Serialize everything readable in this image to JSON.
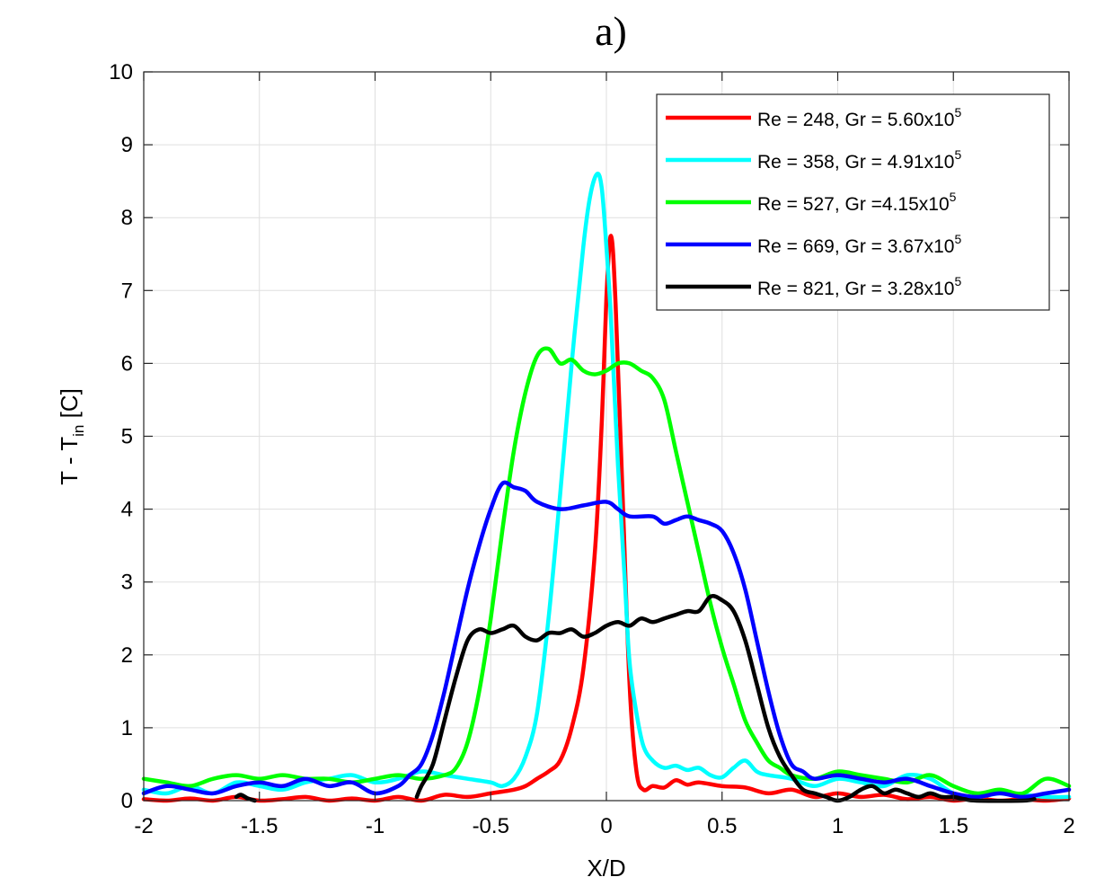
{
  "chart_data": {
    "type": "line",
    "title": "a)",
    "xlabel": "X/D",
    "ylabel": {
      "main": "T - T",
      "sub": "in",
      "unit": " [C]"
    },
    "xlim": [
      -2,
      2
    ],
    "ylim": [
      0,
      10
    ],
    "xticks": [
      "-2",
      "-1.5",
      "-1",
      "-0.5",
      "0",
      "0.5",
      "1",
      "1.5",
      "2"
    ],
    "yticks": [
      "0",
      "1",
      "2",
      "3",
      "4",
      "5",
      "6",
      "7",
      "8",
      "9",
      "10"
    ],
    "grid": true,
    "legend_position": "top-right",
    "series": [
      {
        "name": "Re = 248, Gr = 5.60x10",
        "exp": "5",
        "color": "#ff0000",
        "x": [
          -2,
          -1.9,
          -1.8,
          -1.7,
          -1.6,
          -1.5,
          -1.4,
          -1.3,
          -1.2,
          -1.1,
          -1,
          -0.9,
          -0.8,
          -0.7,
          -0.6,
          -0.5,
          -0.4,
          -0.35,
          -0.3,
          -0.25,
          -0.2,
          -0.15,
          -0.1,
          -0.05,
          -0.02,
          0,
          0.02,
          0.04,
          0.07,
          0.1,
          0.13,
          0.16,
          0.2,
          0.25,
          0.3,
          0.35,
          0.4,
          0.5,
          0.6,
          0.7,
          0.8,
          0.9,
          1.0,
          1.1,
          1.2,
          1.3,
          1.4,
          1.5,
          1.6,
          1.7,
          1.8,
          1.9,
          2
        ],
        "y": [
          0.02,
          0,
          0.03,
          0,
          0.05,
          0,
          0.02,
          0.05,
          0,
          0.03,
          0,
          0.05,
          0,
          0.08,
          0.05,
          0.1,
          0.15,
          0.2,
          0.3,
          0.4,
          0.55,
          1.0,
          1.8,
          3.4,
          5.2,
          6.9,
          7.75,
          6.8,
          4.2,
          1.6,
          0.4,
          0.15,
          0.2,
          0.18,
          0.28,
          0.22,
          0.25,
          0.2,
          0.18,
          0.1,
          0.15,
          0.05,
          0.1,
          0.05,
          0.08,
          0.02,
          0.05,
          0,
          0.03,
          0,
          0.02,
          0,
          0.03
        ]
      },
      {
        "name": "Re = 358, Gr = 4.91x10",
        "exp": "5",
        "color": "#00ffff",
        "x": [
          -2,
          -1.9,
          -1.8,
          -1.7,
          -1.6,
          -1.5,
          -1.4,
          -1.3,
          -1.2,
          -1.1,
          -1,
          -0.9,
          -0.8,
          -0.7,
          -0.6,
          -0.5,
          -0.45,
          -0.4,
          -0.35,
          -0.3,
          -0.25,
          -0.2,
          -0.15,
          -0.1,
          -0.07,
          -0.04,
          -0.02,
          0,
          0.02,
          0.05,
          0.08,
          0.1,
          0.13,
          0.16,
          0.2,
          0.25,
          0.3,
          0.35,
          0.4,
          0.45,
          0.5,
          0.55,
          0.6,
          0.65,
          0.7,
          0.8,
          0.9,
          1.0,
          1.1,
          1.2,
          1.3,
          1.4,
          1.5,
          1.6,
          1.7,
          1.8,
          1.9,
          2
        ],
        "y": [
          0.15,
          0.1,
          0.2,
          0.1,
          0.25,
          0.2,
          0.15,
          0.25,
          0.3,
          0.35,
          0.25,
          0.3,
          0.4,
          0.35,
          0.3,
          0.25,
          0.2,
          0.3,
          0.6,
          1.2,
          2.5,
          4.2,
          6.0,
          7.6,
          8.3,
          8.6,
          8.4,
          7.6,
          6.6,
          4.6,
          3.0,
          1.9,
          1.2,
          0.75,
          0.55,
          0.45,
          0.48,
          0.42,
          0.45,
          0.35,
          0.32,
          0.45,
          0.55,
          0.4,
          0.35,
          0.3,
          0.2,
          0.3,
          0.25,
          0.2,
          0.35,
          0.3,
          0.1,
          0.05,
          0.1,
          0.08,
          0.05,
          0.05
        ]
      },
      {
        "name": "Re = 527, Gr =4.15x10",
        "exp": "5",
        "color": "#00ff00",
        "x": [
          -2,
          -1.9,
          -1.8,
          -1.7,
          -1.6,
          -1.5,
          -1.4,
          -1.3,
          -1.2,
          -1.1,
          -1,
          -0.9,
          -0.8,
          -0.7,
          -0.65,
          -0.6,
          -0.55,
          -0.5,
          -0.45,
          -0.4,
          -0.35,
          -0.3,
          -0.25,
          -0.2,
          -0.15,
          -0.1,
          -0.05,
          0,
          0.05,
          0.1,
          0.15,
          0.2,
          0.25,
          0.3,
          0.35,
          0.4,
          0.45,
          0.5,
          0.55,
          0.6,
          0.65,
          0.7,
          0.75,
          0.8,
          0.9,
          1.0,
          1.1,
          1.2,
          1.3,
          1.4,
          1.5,
          1.6,
          1.7,
          1.8,
          1.9,
          2
        ],
        "y": [
          0.3,
          0.25,
          0.2,
          0.3,
          0.35,
          0.3,
          0.35,
          0.3,
          0.3,
          0.25,
          0.3,
          0.35,
          0.3,
          0.35,
          0.45,
          0.8,
          1.5,
          2.5,
          3.7,
          4.8,
          5.6,
          6.1,
          6.2,
          6.0,
          6.05,
          5.9,
          5.85,
          5.9,
          6.0,
          6.0,
          5.9,
          5.8,
          5.5,
          4.8,
          4.1,
          3.4,
          2.7,
          2.1,
          1.6,
          1.1,
          0.8,
          0.55,
          0.45,
          0.35,
          0.3,
          0.4,
          0.35,
          0.3,
          0.25,
          0.35,
          0.2,
          0.1,
          0.15,
          0.1,
          0.3,
          0.2
        ]
      },
      {
        "name": "Re = 669, Gr = 3.67x10",
        "exp": "5",
        "color": "#0000ff",
        "x": [
          -2,
          -1.9,
          -1.8,
          -1.7,
          -1.6,
          -1.5,
          -1.4,
          -1.3,
          -1.2,
          -1.1,
          -1,
          -0.9,
          -0.85,
          -0.8,
          -0.75,
          -0.7,
          -0.65,
          -0.6,
          -0.55,
          -0.5,
          -0.45,
          -0.4,
          -0.35,
          -0.3,
          -0.2,
          -0.1,
          0,
          0.05,
          0.1,
          0.2,
          0.25,
          0.3,
          0.35,
          0.4,
          0.45,
          0.5,
          0.55,
          0.6,
          0.65,
          0.7,
          0.75,
          0.8,
          0.85,
          0.9,
          1.0,
          1.1,
          1.2,
          1.3,
          1.4,
          1.5,
          1.6,
          1.7,
          1.8,
          1.9,
          2
        ],
        "y": [
          0.1,
          0.2,
          0.15,
          0.1,
          0.2,
          0.25,
          0.2,
          0.3,
          0.2,
          0.25,
          0.1,
          0.2,
          0.35,
          0.5,
          0.9,
          1.5,
          2.2,
          2.9,
          3.5,
          4.0,
          4.35,
          4.3,
          4.25,
          4.1,
          4.0,
          4.05,
          4.1,
          4.0,
          3.9,
          3.9,
          3.8,
          3.85,
          3.9,
          3.85,
          3.8,
          3.7,
          3.4,
          2.9,
          2.2,
          1.5,
          0.9,
          0.5,
          0.4,
          0.3,
          0.35,
          0.3,
          0.25,
          0.3,
          0.2,
          0.1,
          0.05,
          0.1,
          0.05,
          0.1,
          0.15
        ]
      },
      {
        "name": "Re = 821, Gr = 3.28x10",
        "exp": "5",
        "color": "#000000",
        "x": [
          -1.6,
          -1.58,
          -1.55,
          -1.52,
          -0.82,
          -0.8,
          -0.75,
          -0.7,
          -0.65,
          -0.6,
          -0.55,
          -0.5,
          -0.45,
          -0.4,
          -0.35,
          -0.3,
          -0.25,
          -0.2,
          -0.15,
          -0.1,
          -0.05,
          0,
          0.05,
          0.1,
          0.15,
          0.2,
          0.25,
          0.3,
          0.35,
          0.4,
          0.45,
          0.5,
          0.55,
          0.6,
          0.65,
          0.7,
          0.75,
          0.8,
          0.85,
          0.9,
          0.95,
          1.0,
          1.05,
          1.1,
          1.15,
          1.2,
          1.25,
          1.3,
          1.35,
          1.4,
          1.45,
          1.5,
          1.55,
          1.6,
          1.8,
          1.85
        ],
        "y": [
          0.05,
          0.08,
          0.03,
          0,
          0.05,
          0.2,
          0.5,
          1.1,
          1.7,
          2.2,
          2.35,
          2.3,
          2.35,
          2.4,
          2.25,
          2.2,
          2.3,
          2.3,
          2.35,
          2.25,
          2.3,
          2.4,
          2.45,
          2.4,
          2.5,
          2.45,
          2.5,
          2.55,
          2.6,
          2.6,
          2.8,
          2.75,
          2.6,
          2.2,
          1.6,
          1.0,
          0.6,
          0.35,
          0.15,
          0.1,
          0.05,
          0,
          0.05,
          0.15,
          0.2,
          0.1,
          0.15,
          0.1,
          0.05,
          0.1,
          0.05,
          0.05,
          0.02,
          0,
          0,
          0.02
        ]
      }
    ]
  }
}
